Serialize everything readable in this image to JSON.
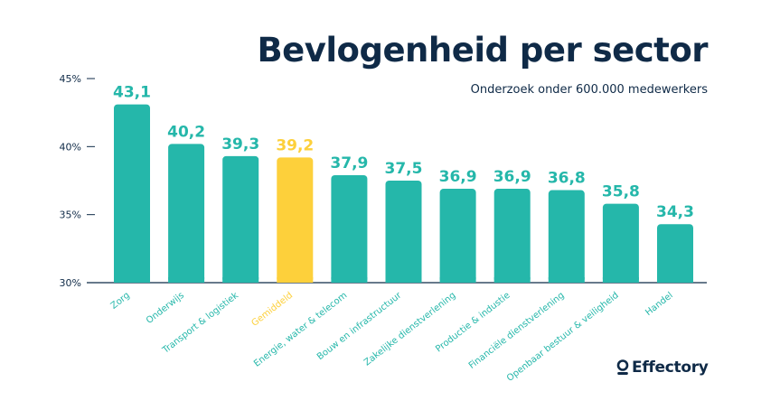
{
  "title": "Bevlogenheid per sector",
  "subtitle": "Onderzoek onder 600.000 medewerkers",
  "logo_text": "Effectory",
  "colors": {
    "bar": "#25b7aa",
    "highlight": "#fdd03b",
    "axis": "#0f2a47",
    "text": "#0f2a47"
  },
  "chart_data": {
    "type": "bar",
    "categories": [
      "Zorg",
      "Onderwijs",
      "Transport & logistiek",
      "Gemiddeld",
      "Energie, water & telecom",
      "Bouw en infrastructuur",
      "Zakelijke dienstverlening",
      "Productie & industie",
      "Financiële dienstverlening",
      "Openbaar bestuur & veiligheid",
      "Handel"
    ],
    "values": [
      43.1,
      40.2,
      39.3,
      39.2,
      37.9,
      37.5,
      36.9,
      36.9,
      36.8,
      35.8,
      34.3
    ],
    "value_labels": [
      "43,1",
      "40,2",
      "39,3",
      "39,2",
      "37,9",
      "37,5",
      "36,9",
      "36,9",
      "36,8",
      "35,8",
      "34,3"
    ],
    "highlight_category": "Gemiddeld",
    "ylim": [
      30,
      45
    ],
    "yticks": [
      30,
      35,
      40,
      45
    ],
    "ytick_labels": [
      "30%",
      "35%",
      "40%",
      "45%"
    ],
    "grid": false,
    "legend": "none"
  }
}
